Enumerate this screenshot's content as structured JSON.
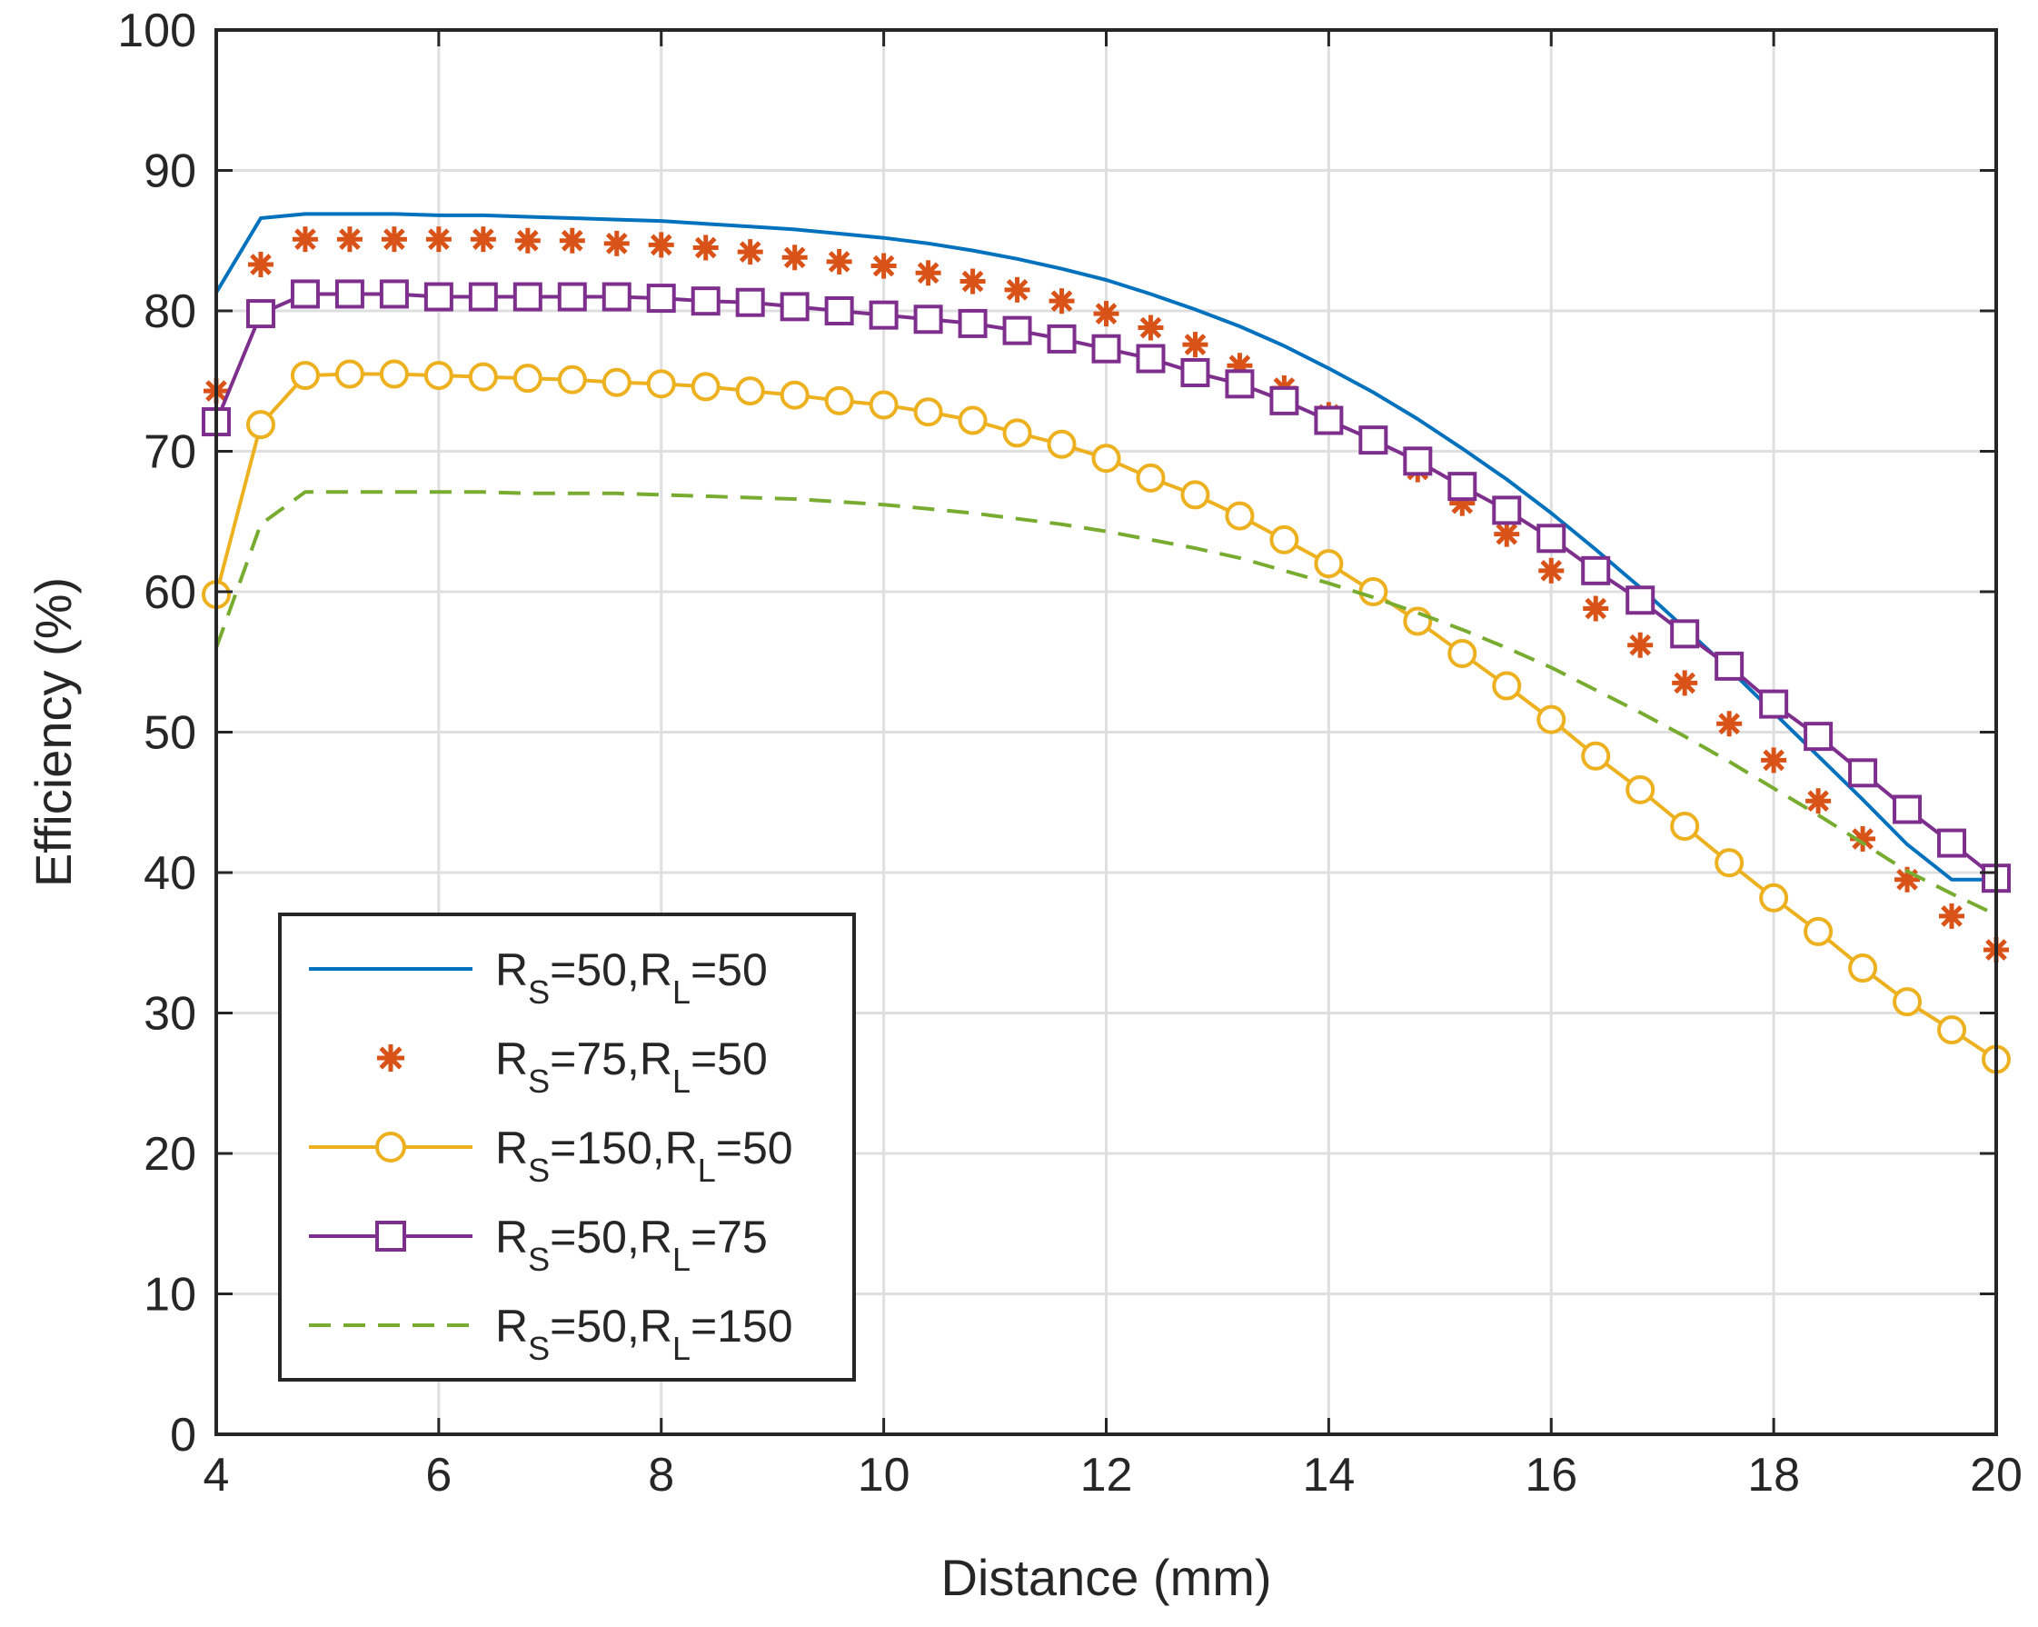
{
  "chart_data": {
    "type": "line",
    "title": "",
    "xlabel": "Distance (mm)",
    "ylabel": "Efficiency (%)",
    "xlim": [
      4,
      20
    ],
    "ylim": [
      0,
      100
    ],
    "xticks": [
      4,
      6,
      8,
      10,
      12,
      14,
      16,
      18,
      20
    ],
    "yticks": [
      0,
      10,
      20,
      30,
      40,
      50,
      60,
      70,
      80,
      90,
      100
    ],
    "grid": true,
    "legend_position": "bottom-left",
    "x": [
      4.0,
      4.4,
      4.8,
      5.2,
      5.6,
      6.0,
      6.4,
      6.8,
      7.2,
      7.6,
      8.0,
      8.4,
      8.8,
      9.2,
      9.6,
      10.0,
      10.4,
      10.8,
      11.2,
      11.6,
      12.0,
      12.4,
      12.8,
      13.2,
      13.6,
      14.0,
      14.4,
      14.8,
      15.2,
      15.6,
      16.0,
      16.4,
      16.8,
      17.2,
      17.6,
      18.0,
      18.4,
      18.8,
      19.2,
      19.6,
      20.0
    ],
    "series": [
      {
        "name": "RS=50,RL=50",
        "legend": {
          "pre": "R",
          "sub1": "S",
          "mid": "=50,R",
          "sub2": "L",
          "post": "=50"
        },
        "color": "#0072BD",
        "style": "solid",
        "marker": "none",
        "values": [
          81.3,
          86.6,
          86.9,
          86.9,
          86.9,
          86.8,
          86.8,
          86.7,
          86.6,
          86.5,
          86.4,
          86.2,
          86.0,
          85.8,
          85.5,
          85.2,
          84.8,
          84.3,
          83.7,
          83.0,
          82.2,
          81.2,
          80.1,
          78.9,
          77.5,
          75.9,
          74.2,
          72.3,
          70.2,
          68.0,
          65.6,
          63.0,
          60.3,
          57.4,
          54.5,
          51.4,
          48.3,
          45.2,
          42.0,
          39.5,
          39.5
        ]
      },
      {
        "name": "RS=75,RL=50",
        "legend": {
          "pre": "R",
          "sub1": "S",
          "mid": "=75,R",
          "sub2": "L",
          "post": "=50"
        },
        "color": "#D95319",
        "style": "none",
        "marker": "asterisk",
        "values": [
          74.3,
          83.3,
          85.1,
          85.1,
          85.1,
          85.1,
          85.1,
          85.0,
          85.0,
          84.8,
          84.7,
          84.5,
          84.2,
          83.8,
          83.5,
          83.2,
          82.7,
          82.1,
          81.5,
          80.7,
          79.8,
          78.8,
          77.6,
          76.1,
          74.5,
          72.6,
          70.7,
          68.7,
          66.3,
          64.1,
          61.5,
          58.8,
          56.2,
          53.5,
          50.6,
          48.0,
          45.1,
          42.4,
          39.5,
          36.9,
          34.5
        ]
      },
      {
        "name": "RS=150,RL=50",
        "legend": {
          "pre": "R",
          "sub1": "S",
          "mid": "=150,R",
          "sub2": "L",
          "post": "=50"
        },
        "color": "#EDB120",
        "style": "solid",
        "marker": "circle",
        "values": [
          59.8,
          71.9,
          75.4,
          75.5,
          75.5,
          75.4,
          75.3,
          75.2,
          75.1,
          74.9,
          74.8,
          74.6,
          74.3,
          74.0,
          73.6,
          73.3,
          72.8,
          72.2,
          71.3,
          70.5,
          69.5,
          68.1,
          66.9,
          65.4,
          63.7,
          62.0,
          60.0,
          57.9,
          55.6,
          53.3,
          50.9,
          48.3,
          45.9,
          43.3,
          40.7,
          38.2,
          35.8,
          33.2,
          30.8,
          28.8,
          26.7
        ]
      },
      {
        "name": "RS=50,RL=75",
        "legend": {
          "pre": "R",
          "sub1": "S",
          "mid": "=50,R",
          "sub2": "L",
          "post": "=75"
        },
        "color": "#7E2F8E",
        "style": "solid",
        "marker": "square",
        "values": [
          72.1,
          79.8,
          81.2,
          81.2,
          81.2,
          81.0,
          81.0,
          81.0,
          81.0,
          81.0,
          80.9,
          80.7,
          80.6,
          80.3,
          80.0,
          79.7,
          79.4,
          79.1,
          78.6,
          78.0,
          77.3,
          76.6,
          75.6,
          74.8,
          73.6,
          72.2,
          70.8,
          69.3,
          67.5,
          65.8,
          63.8,
          61.5,
          59.4,
          57.0,
          54.7,
          52.0,
          49.7,
          47.1,
          44.5,
          42.1,
          39.6
        ]
      },
      {
        "name": "RS=50,RL=150",
        "legend": {
          "pre": "R",
          "sub1": "S",
          "mid": "=50,R",
          "sub2": "L",
          "post": "=150"
        },
        "color": "#77AC30",
        "style": "dashed",
        "marker": "none",
        "values": [
          56.0,
          64.8,
          67.1,
          67.1,
          67.1,
          67.1,
          67.1,
          67.0,
          67.0,
          67.0,
          66.9,
          66.8,
          66.7,
          66.6,
          66.4,
          66.2,
          65.9,
          65.6,
          65.2,
          64.8,
          64.3,
          63.7,
          63.1,
          62.4,
          61.5,
          60.6,
          59.6,
          58.5,
          57.3,
          56.0,
          54.6,
          53.0,
          51.4,
          49.7,
          47.9,
          46.0,
          44.1,
          42.1,
          40.1,
          38.5,
          37.0
        ]
      }
    ]
  }
}
